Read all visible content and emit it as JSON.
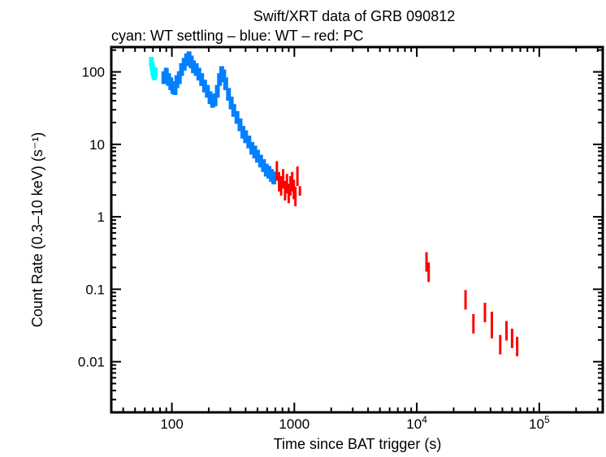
{
  "chart_data": {
    "type": "scatter",
    "title": "Swift/XRT data of GRB 090812",
    "subtitle": "cyan: WT settling – blue: WT – red: PC",
    "xlabel": "Time since BAT trigger (s)",
    "ylabel": "Count Rate (0.3–10 keV) (s⁻¹)",
    "xscale": "log",
    "yscale": "log",
    "xlim": [
      32,
      330000
    ],
    "ylim": [
      0.002,
      220
    ],
    "grid": false,
    "x_ticks": [
      {
        "value": 100,
        "label": "100"
      },
      {
        "value": 1000,
        "label": "1000"
      },
      {
        "value": 10000,
        "label": "10",
        "exp": "4"
      },
      {
        "value": 100000,
        "label": "10",
        "exp": "5"
      }
    ],
    "y_ticks": [
      {
        "value": 100,
        "label": "100"
      },
      {
        "value": 10,
        "label": "10"
      },
      {
        "value": 1,
        "label": "1"
      },
      {
        "value": 0.1,
        "label": "0.1"
      },
      {
        "value": 0.01,
        "label": "0.01"
      }
    ],
    "series": [
      {
        "name": "WT settling",
        "color": "#00ffff",
        "points": [
          [
            68,
            140,
            0.15
          ],
          [
            69,
            120,
            0.15
          ],
          [
            70,
            105,
            0.15
          ],
          [
            71,
            95,
            0.15
          ],
          [
            72,
            90,
            0.15
          ],
          [
            73,
            100,
            0.15
          ]
        ]
      },
      {
        "name": "WT",
        "color": "#0080ff",
        "points": [
          [
            86,
            85,
            0.2
          ],
          [
            90,
            95,
            0.2
          ],
          [
            94,
            80,
            0.2
          ],
          [
            98,
            70,
            0.2
          ],
          [
            102,
            62,
            0.2
          ],
          [
            106,
            60,
            0.2
          ],
          [
            110,
            75,
            0.2
          ],
          [
            115,
            85,
            0.2
          ],
          [
            120,
            110,
            0.2
          ],
          [
            126,
            130,
            0.2
          ],
          [
            132,
            150,
            0.2
          ],
          [
            138,
            160,
            0.2
          ],
          [
            144,
            140,
            0.2
          ],
          [
            150,
            120,
            0.2
          ],
          [
            158,
            110,
            0.2
          ],
          [
            166,
            95,
            0.2
          ],
          [
            175,
            80,
            0.2
          ],
          [
            185,
            65,
            0.2
          ],
          [
            195,
            55,
            0.2
          ],
          [
            205,
            45,
            0.2
          ],
          [
            215,
            40,
            0.2
          ],
          [
            225,
            42,
            0.2
          ],
          [
            235,
            55,
            0.2
          ],
          [
            245,
            80,
            0.2
          ],
          [
            255,
            100,
            0.2
          ],
          [
            265,
            90,
            0.2
          ],
          [
            275,
            70,
            0.2
          ],
          [
            290,
            50,
            0.2
          ],
          [
            305,
            38,
            0.2
          ],
          [
            320,
            30,
            0.2
          ],
          [
            340,
            24,
            0.2
          ],
          [
            360,
            19,
            0.2
          ],
          [
            380,
            15,
            0.2
          ],
          [
            400,
            13,
            0.2
          ],
          [
            425,
            11,
            0.2
          ],
          [
            450,
            9,
            0.2
          ],
          [
            475,
            8,
            0.2
          ],
          [
            500,
            7,
            0.2
          ],
          [
            530,
            6,
            0.2
          ],
          [
            560,
            5.2,
            0.2
          ],
          [
            590,
            4.5,
            0.2
          ],
          [
            620,
            4.2,
            0.2
          ],
          [
            650,
            3.8,
            0.2
          ],
          [
            680,
            3.5,
            0.2
          ]
        ]
      },
      {
        "name": "PC",
        "color": "#ff0000",
        "points": [
          [
            720,
            4.5,
            0.3
          ],
          [
            750,
            3.2,
            0.3
          ],
          [
            780,
            2.8,
            0.3
          ],
          [
            810,
            3.5,
            0.3
          ],
          [
            840,
            2.4,
            0.3
          ],
          [
            870,
            3.0,
            0.3
          ],
          [
            900,
            2.2,
            0.3
          ],
          [
            930,
            2.8,
            0.3
          ],
          [
            960,
            3.2,
            0.3
          ],
          [
            990,
            2.5,
            0.3
          ],
          [
            1020,
            2.0,
            0.3
          ],
          [
            1060,
            3.8,
            0.3
          ],
          [
            1110,
            2.3,
            0.15
          ],
          [
            12000,
            0.25,
            0.3
          ],
          [
            12500,
            0.18,
            0.3
          ],
          [
            25000,
            0.075,
            0.3
          ],
          [
            29000,
            0.035,
            0.3
          ],
          [
            36000,
            0.05,
            0.3
          ],
          [
            41000,
            0.035,
            0.4
          ],
          [
            48000,
            0.018,
            0.3
          ],
          [
            54000,
            0.028,
            0.3
          ],
          [
            60000,
            0.022,
            0.3
          ],
          [
            66000,
            0.017,
            0.3
          ]
        ]
      }
    ]
  }
}
